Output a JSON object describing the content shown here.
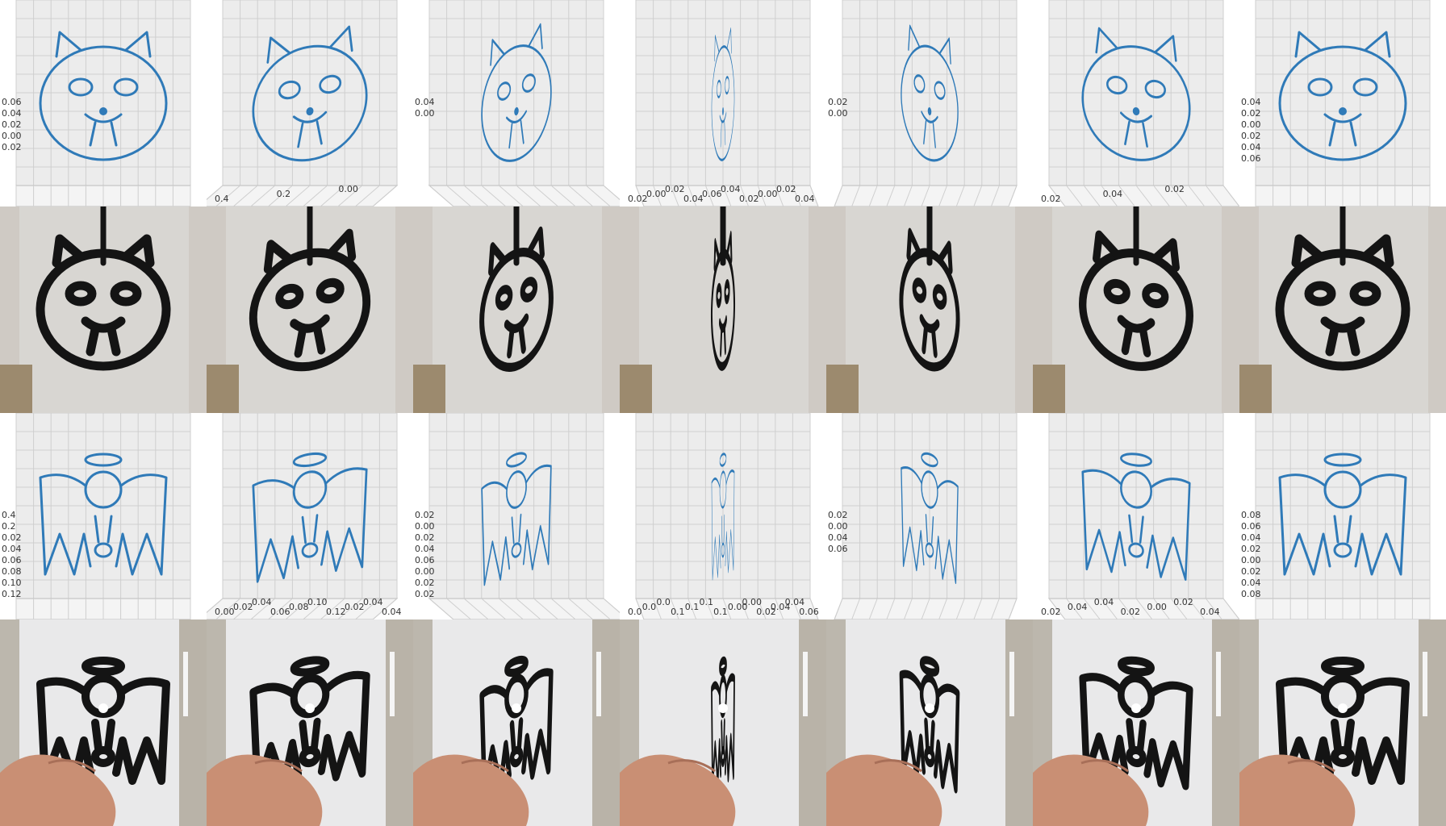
{
  "colors": {
    "plot_line": "#2f7ab8",
    "grid": "#cfcfcf",
    "pane": "#ececec",
    "photo_wall": "#d8d6d2",
    "ink": "#141414",
    "skin": "#c98f74"
  },
  "rows": [
    {
      "kind": "3d-plot-renders",
      "subject": "round-face-cat-ornament",
      "panel_count": 7,
      "tick_labels": [
        [
          "0.06",
          "0.04",
          "0.02",
          "0.00",
          "0.02"
        ],
        [
          "0.4",
          "0.2",
          "0.00"
        ],
        [
          "0.04",
          "0.00"
        ],
        [
          "0.02",
          "0.00",
          "0.02",
          "0.04",
          "0.06",
          "0.04",
          "0.02",
          "0.00",
          "0.02",
          "0.04"
        ],
        [
          "0.02",
          "0.00"
        ],
        [
          "0.02",
          "0.04",
          "0.02"
        ],
        [
          "0.04",
          "0.02",
          "0.00",
          "0.02",
          "0.04",
          "0.06"
        ]
      ]
    },
    {
      "kind": "photos-hanging-print",
      "subject": "round-face-cat-ornament",
      "panel_count": 7
    },
    {
      "kind": "3d-plot-renders",
      "subject": "winged-angel-figure",
      "panel_count": 7,
      "tick_labels": [
        [
          "0.4",
          "0.2",
          "0.02",
          "0.04",
          "0.06",
          "0.08",
          "0.10",
          "0.12"
        ],
        [
          "0.00",
          "0.02",
          "0.04",
          "0.06",
          "0.08",
          "0.10",
          "0.12",
          "0.02",
          "0.04",
          "0.04"
        ],
        [
          "0.02",
          "0.00",
          "0.02",
          "0.04",
          "0.06",
          "0.00",
          "0.02",
          "0.02"
        ],
        [
          "0.0",
          "0.0",
          "0.0",
          "0.1",
          "0.1",
          "0.1",
          "0.1",
          "0.00",
          "0.00",
          "0.02",
          "0.04",
          "0.04",
          "0.06"
        ],
        [
          "0.02",
          "0.00",
          "0.04",
          "0.06"
        ],
        [
          "0.02",
          "0.04",
          "0.04",
          "0.02",
          "0.00",
          "0.02",
          "0.04"
        ],
        [
          "0.08",
          "0.06",
          "0.04",
          "0.02",
          "0.00",
          "0.02",
          "0.04",
          "0.08"
        ]
      ]
    },
    {
      "kind": "photos-hand-held-print",
      "subject": "winged-angel-figure",
      "panel_count": 7
    }
  ]
}
